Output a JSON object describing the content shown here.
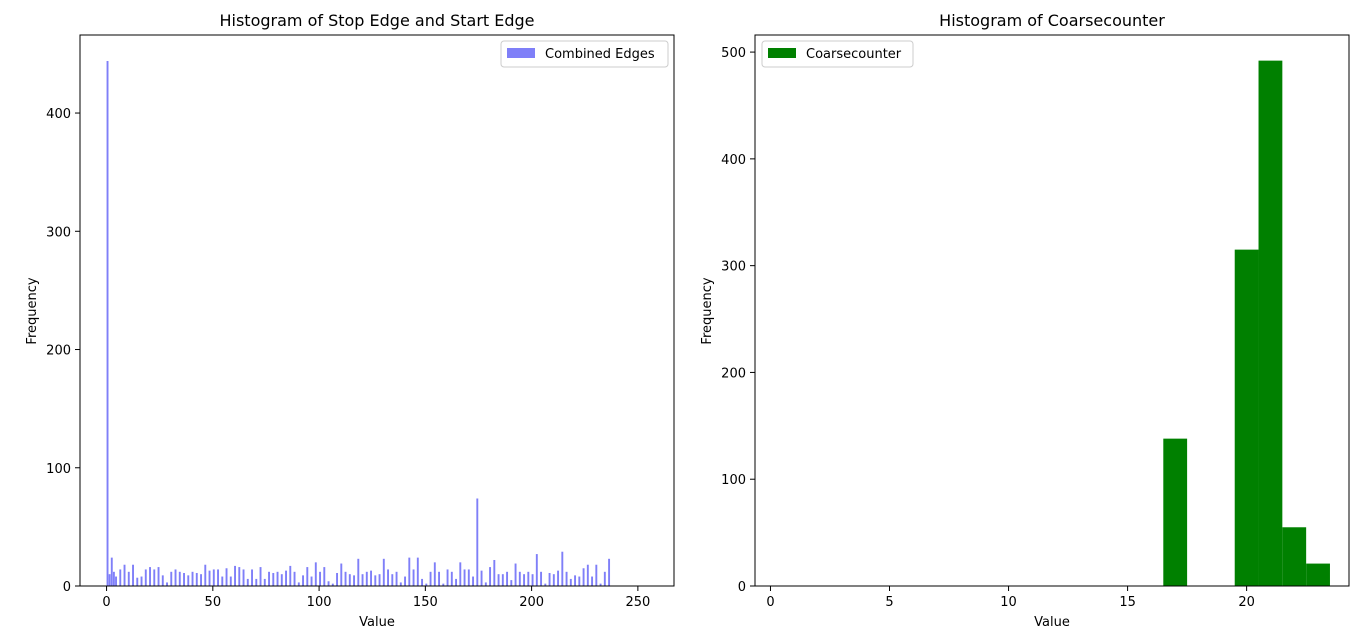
{
  "chart_data": [
    {
      "type": "bar",
      "title": "Histogram of Stop Edge and Start Edge",
      "xlabel": "Value",
      "ylabel": "Frequency",
      "xlim": [
        -12.5,
        267
      ],
      "ylim": [
        0,
        466
      ],
      "xticks": [
        0,
        50,
        100,
        150,
        200,
        250
      ],
      "yticks": [
        0,
        100,
        200,
        300,
        400
      ],
      "bin_width": 1,
      "color": "#7f7ff8",
      "legend": {
        "label": "Combined Edges",
        "position": "upper right"
      },
      "series": [
        {
          "name": "Combined Edges",
          "x": [
            0,
            1,
            2,
            3,
            4,
            6,
            8,
            10,
            12,
            14,
            16,
            18,
            20,
            22,
            24,
            26,
            28,
            30,
            32,
            34,
            36,
            38,
            40,
            42,
            44,
            46,
            48,
            50,
            52,
            54,
            56,
            58,
            60,
            62,
            64,
            66,
            68,
            70,
            72,
            74,
            76,
            78,
            80,
            82,
            84,
            86,
            88,
            90,
            92,
            94,
            96,
            98,
            100,
            102,
            104,
            106,
            108,
            110,
            112,
            114,
            116,
            118,
            120,
            122,
            124,
            126,
            128,
            130,
            132,
            134,
            136,
            138,
            140,
            142,
            144,
            146,
            148,
            150,
            152,
            154,
            156,
            158,
            160,
            162,
            164,
            166,
            168,
            170,
            172,
            174,
            176,
            178,
            180,
            182,
            184,
            186,
            188,
            190,
            192,
            194,
            196,
            198,
            200,
            202,
            204,
            206,
            208,
            210,
            212,
            214,
            216,
            218,
            220,
            222,
            224,
            226,
            228,
            230,
            232,
            234,
            236
          ],
          "values": [
            444,
            10,
            24,
            12,
            8,
            14,
            18,
            12,
            18,
            7,
            8,
            14,
            16,
            14,
            16,
            9,
            3,
            12,
            14,
            12,
            11,
            9,
            12,
            11,
            10,
            18,
            13,
            14,
            14,
            8,
            15,
            8,
            17,
            16,
            14,
            6,
            14,
            6,
            16,
            6,
            12,
            11,
            12,
            10,
            13,
            17,
            12,
            3,
            9,
            16,
            8,
            20,
            12,
            16,
            4,
            2,
            11,
            19,
            12,
            10,
            9,
            23,
            10,
            12,
            13,
            9,
            10,
            23,
            14,
            10,
            12,
            3,
            8,
            24,
            14,
            24,
            6,
            2,
            12,
            20,
            12,
            2,
            14,
            12,
            6,
            20,
            14,
            14,
            8,
            74,
            13,
            3,
            16,
            22,
            10,
            10,
            12,
            5,
            19,
            12,
            10,
            12,
            10,
            27,
            12,
            2,
            11,
            10,
            13,
            29,
            12,
            6,
            9,
            8,
            15,
            18,
            8,
            18,
            2,
            12,
            23
          ]
        }
      ]
    },
    {
      "type": "bar",
      "title": "Histogram of Coarsecounter",
      "xlabel": "Value",
      "ylabel": "Frequency",
      "xlim": [
        -0.65,
        24.3
      ],
      "ylim": [
        0,
        516
      ],
      "xticks": [
        0,
        5,
        10,
        15,
        20
      ],
      "yticks": [
        0,
        100,
        200,
        300,
        400,
        500
      ],
      "color": "#008000",
      "legend": {
        "label": "Coarsecounter",
        "position": "upper left"
      },
      "series": [
        {
          "name": "Coarsecounter",
          "x": [
            16.5,
            19.5,
            20.5,
            21.5,
            22.5
          ],
          "bin_width": 1,
          "values": [
            138,
            315,
            492,
            55,
            21
          ]
        }
      ]
    }
  ]
}
